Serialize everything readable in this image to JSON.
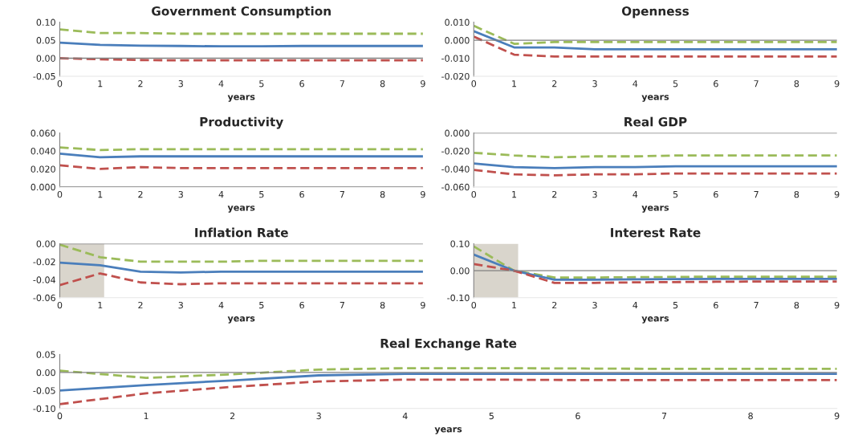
{
  "chart_data": [
    {
      "type": "line",
      "title": "Government Consumption",
      "xlabel": "years",
      "x": [
        0,
        1,
        2,
        3,
        4,
        5,
        6,
        7,
        8,
        9
      ],
      "xlim": [
        0,
        9
      ],
      "xticks": [
        0,
        1,
        2,
        3,
        4,
        5,
        6,
        7,
        8,
        9
      ],
      "ylim": [
        -0.05,
        0.1
      ],
      "yticks": [
        {
          "value": -0.05,
          "label": "-0.05"
        },
        {
          "value": 0,
          "label": "0.00"
        },
        {
          "value": 0.05,
          "label": "0.05"
        },
        {
          "value": 0.1,
          "label": "0.10"
        }
      ],
      "grid": false,
      "legend": false,
      "ref_lines": [
        {
          "axis": "y",
          "value": 0,
          "color": "#808080"
        }
      ],
      "series": [
        {
          "color": "#9bbb59",
          "line_style": "dashed",
          "values": [
            0.08,
            0.07,
            0.07,
            0.068,
            0.068,
            0.068,
            0.068,
            0.068,
            0.068,
            0.068
          ]
        },
        {
          "color": "#4a7ebb",
          "line_style": "solid",
          "values": [
            0.043,
            0.037,
            0.035,
            0.034,
            0.033,
            0.033,
            0.034,
            0.034,
            0.034,
            0.034
          ]
        },
        {
          "color": "#c0504d",
          "line_style": "dashed",
          "values": [
            0.0,
            -0.003,
            -0.005,
            -0.006,
            -0.006,
            -0.006,
            -0.006,
            -0.006,
            -0.006,
            -0.006
          ]
        }
      ]
    },
    {
      "type": "line",
      "title": "Openness",
      "xlabel": "years",
      "x": [
        0,
        1,
        2,
        3,
        4,
        5,
        6,
        7,
        8,
        9
      ],
      "xlim": [
        0,
        9
      ],
      "xticks": [
        0,
        1,
        2,
        3,
        4,
        5,
        6,
        7,
        8,
        9
      ],
      "ylim": [
        -0.02,
        0.01
      ],
      "yticks": [
        {
          "value": -0.02,
          "label": "-0.020"
        },
        {
          "value": -0.01,
          "label": "-0.010"
        },
        {
          "value": 0,
          "label": "0.000"
        },
        {
          "value": 0.01,
          "label": "0.010"
        }
      ],
      "grid": false,
      "legend": false,
      "ref_lines": [
        {
          "axis": "y",
          "value": 0,
          "color": "#808080"
        }
      ],
      "series": [
        {
          "color": "#9bbb59",
          "line_style": "dashed",
          "values": [
            0.008,
            -0.002,
            -0.001,
            -0.001,
            -0.001,
            -0.001,
            -0.001,
            -0.001,
            -0.001,
            -0.001
          ]
        },
        {
          "color": "#4a7ebb",
          "line_style": "solid",
          "values": [
            0.005,
            -0.004,
            -0.004,
            -0.005,
            -0.005,
            -0.005,
            -0.005,
            -0.005,
            -0.005,
            -0.005
          ]
        },
        {
          "color": "#c0504d",
          "line_style": "dashed",
          "values": [
            0.002,
            -0.008,
            -0.009,
            -0.009,
            -0.009,
            -0.009,
            -0.009,
            -0.009,
            -0.009,
            -0.009
          ]
        }
      ]
    },
    {
      "type": "line",
      "title": "Productivity",
      "xlabel": "years",
      "x": [
        0,
        1,
        2,
        3,
        4,
        5,
        6,
        7,
        8,
        9
      ],
      "xlim": [
        0,
        9
      ],
      "xticks": [
        0,
        1,
        2,
        3,
        4,
        5,
        6,
        7,
        8,
        9
      ],
      "ylim": [
        0,
        0.06
      ],
      "yticks": [
        {
          "value": 0,
          "label": "0.000"
        },
        {
          "value": 0.02,
          "label": "0.020"
        },
        {
          "value": 0.04,
          "label": "0.040"
        },
        {
          "value": 0.06,
          "label": "0.060"
        }
      ],
      "grid": false,
      "legend": false,
      "ref_lines": [
        {
          "axis": "y",
          "value": 0,
          "color": "#808080"
        }
      ],
      "series": [
        {
          "color": "#9bbb59",
          "line_style": "dashed",
          "values": [
            0.044,
            0.041,
            0.042,
            0.042,
            0.042,
            0.042,
            0.042,
            0.042,
            0.042,
            0.042
          ]
        },
        {
          "color": "#4a7ebb",
          "line_style": "solid",
          "values": [
            0.037,
            0.033,
            0.034,
            0.034,
            0.034,
            0.034,
            0.034,
            0.034,
            0.034,
            0.034
          ]
        },
        {
          "color": "#c0504d",
          "line_style": "dashed",
          "values": [
            0.024,
            0.02,
            0.022,
            0.021,
            0.021,
            0.021,
            0.021,
            0.021,
            0.021,
            0.021
          ]
        }
      ]
    },
    {
      "type": "line",
      "title": "Real GDP",
      "xlabel": "years",
      "x": [
        0,
        1,
        2,
        3,
        4,
        5,
        6,
        7,
        8,
        9
      ],
      "xlim": [
        0,
        9
      ],
      "xticks": [
        0,
        1,
        2,
        3,
        4,
        5,
        6,
        7,
        8,
        9
      ],
      "ylim": [
        -0.06,
        0
      ],
      "yticks": [
        {
          "value": -0.06,
          "label": "-0.060"
        },
        {
          "value": -0.04,
          "label": "-0.040"
        },
        {
          "value": -0.02,
          "label": "-0.020"
        },
        {
          "value": 0,
          "label": "0.000"
        }
      ],
      "grid": false,
      "legend": false,
      "ref_lines": [
        {
          "axis": "y",
          "value": 0,
          "color": "#808080"
        }
      ],
      "series": [
        {
          "color": "#9bbb59",
          "line_style": "dashed",
          "values": [
            -0.022,
            -0.025,
            -0.027,
            -0.026,
            -0.026,
            -0.025,
            -0.025,
            -0.025,
            -0.025,
            -0.025
          ]
        },
        {
          "color": "#4a7ebb",
          "line_style": "solid",
          "values": [
            -0.034,
            -0.038,
            -0.039,
            -0.038,
            -0.038,
            -0.037,
            -0.037,
            -0.037,
            -0.037,
            -0.037
          ]
        },
        {
          "color": "#c0504d",
          "line_style": "dashed",
          "values": [
            -0.041,
            -0.046,
            -0.047,
            -0.046,
            -0.046,
            -0.045,
            -0.045,
            -0.045,
            -0.045,
            -0.045
          ]
        }
      ]
    },
    {
      "type": "line",
      "title": "Inflation Rate",
      "xlabel": "years",
      "x": [
        0,
        1,
        2,
        3,
        4,
        5,
        6,
        7,
        8,
        9
      ],
      "xlim": [
        0,
        9
      ],
      "xticks": [
        0,
        1,
        2,
        3,
        4,
        5,
        6,
        7,
        8,
        9
      ],
      "ylim": [
        -0.06,
        0
      ],
      "yticks": [
        {
          "value": -0.06,
          "label": "-0.06"
        },
        {
          "value": -0.04,
          "label": "-0.04"
        },
        {
          "value": -0.02,
          "label": "-0.02"
        },
        {
          "value": 0,
          "label": "0.00"
        }
      ],
      "grid": false,
      "legend": false,
      "ref_lines": [
        {
          "axis": "y",
          "value": 0,
          "color": "#808080"
        }
      ],
      "bands": [
        {
          "axis": "x",
          "from": 0,
          "to": 1.1,
          "color": "#d9d5cc"
        }
      ],
      "series": [
        {
          "color": "#9bbb59",
          "line_style": "dashed",
          "values": [
            -0.001,
            -0.015,
            -0.02,
            -0.02,
            -0.02,
            -0.019,
            -0.019,
            -0.019,
            -0.019,
            -0.019
          ]
        },
        {
          "color": "#4a7ebb",
          "line_style": "solid",
          "values": [
            -0.021,
            -0.024,
            -0.031,
            -0.032,
            -0.031,
            -0.031,
            -0.031,
            -0.031,
            -0.031,
            -0.031
          ]
        },
        {
          "color": "#c0504d",
          "line_style": "dashed",
          "values": [
            -0.046,
            -0.033,
            -0.043,
            -0.045,
            -0.044,
            -0.044,
            -0.044,
            -0.044,
            -0.044,
            -0.044
          ]
        }
      ]
    },
    {
      "type": "line",
      "title": "Interest Rate",
      "xlabel": "years",
      "x": [
        0,
        1,
        2,
        3,
        4,
        5,
        6,
        7,
        8,
        9
      ],
      "xlim": [
        0,
        9
      ],
      "xticks": [
        0,
        1,
        2,
        3,
        4,
        5,
        6,
        7,
        8,
        9
      ],
      "ylim": [
        -0.1,
        0.1
      ],
      "yticks": [
        {
          "value": -0.1,
          "label": "-0.10"
        },
        {
          "value": 0,
          "label": "0.00"
        },
        {
          "value": 0.1,
          "label": "0.10"
        }
      ],
      "grid": false,
      "legend": false,
      "ref_lines": [
        {
          "axis": "y",
          "value": 0,
          "color": "#808080"
        }
      ],
      "bands": [
        {
          "axis": "x",
          "from": 0,
          "to": 1.1,
          "color": "#d9d5cc"
        }
      ],
      "series": [
        {
          "color": "#9bbb59",
          "line_style": "dashed",
          "values": [
            0.09,
            0.0,
            -0.025,
            -0.025,
            -0.024,
            -0.023,
            -0.022,
            -0.022,
            -0.022,
            -0.022
          ]
        },
        {
          "color": "#4a7ebb",
          "line_style": "solid",
          "values": [
            0.06,
            0.0,
            -0.033,
            -0.033,
            -0.032,
            -0.031,
            -0.03,
            -0.03,
            -0.03,
            -0.03
          ]
        },
        {
          "color": "#c0504d",
          "line_style": "dashed",
          "values": [
            0.025,
            0.0,
            -0.045,
            -0.045,
            -0.043,
            -0.042,
            -0.041,
            -0.04,
            -0.04,
            -0.04
          ]
        }
      ]
    },
    {
      "type": "line",
      "title": "Real Exchange Rate",
      "xlabel": "years",
      "x": [
        0,
        1,
        2,
        3,
        4,
        5,
        6,
        7,
        8,
        9
      ],
      "xlim": [
        0,
        9
      ],
      "xticks": [
        0,
        1,
        2,
        3,
        4,
        5,
        6,
        7,
        8,
        9
      ],
      "ylim": [
        -0.1,
        0.05
      ],
      "yticks": [
        {
          "value": -0.1,
          "label": "-0.10"
        },
        {
          "value": -0.05,
          "label": "-0.05"
        },
        {
          "value": 0,
          "label": "0.00"
        },
        {
          "value": 0.05,
          "label": "0.05"
        }
      ],
      "grid": false,
      "legend": false,
      "ref_lines": [
        {
          "axis": "y",
          "value": 0,
          "color": "#808080"
        }
      ],
      "series": [
        {
          "color": "#9bbb59",
          "line_style": "dashed",
          "values": [
            0.005,
            -0.015,
            -0.005,
            0.008,
            0.012,
            0.012,
            0.011,
            0.01,
            0.01,
            0.01
          ]
        },
        {
          "color": "#4a7ebb",
          "line_style": "solid",
          "values": [
            -0.05,
            -0.035,
            -0.022,
            -0.008,
            -0.004,
            -0.004,
            -0.004,
            -0.004,
            -0.004,
            -0.004
          ]
        },
        {
          "color": "#c0504d",
          "line_style": "dashed",
          "values": [
            -0.088,
            -0.058,
            -0.04,
            -0.025,
            -0.02,
            -0.02,
            -0.021,
            -0.021,
            -0.021,
            -0.021
          ]
        }
      ]
    }
  ]
}
